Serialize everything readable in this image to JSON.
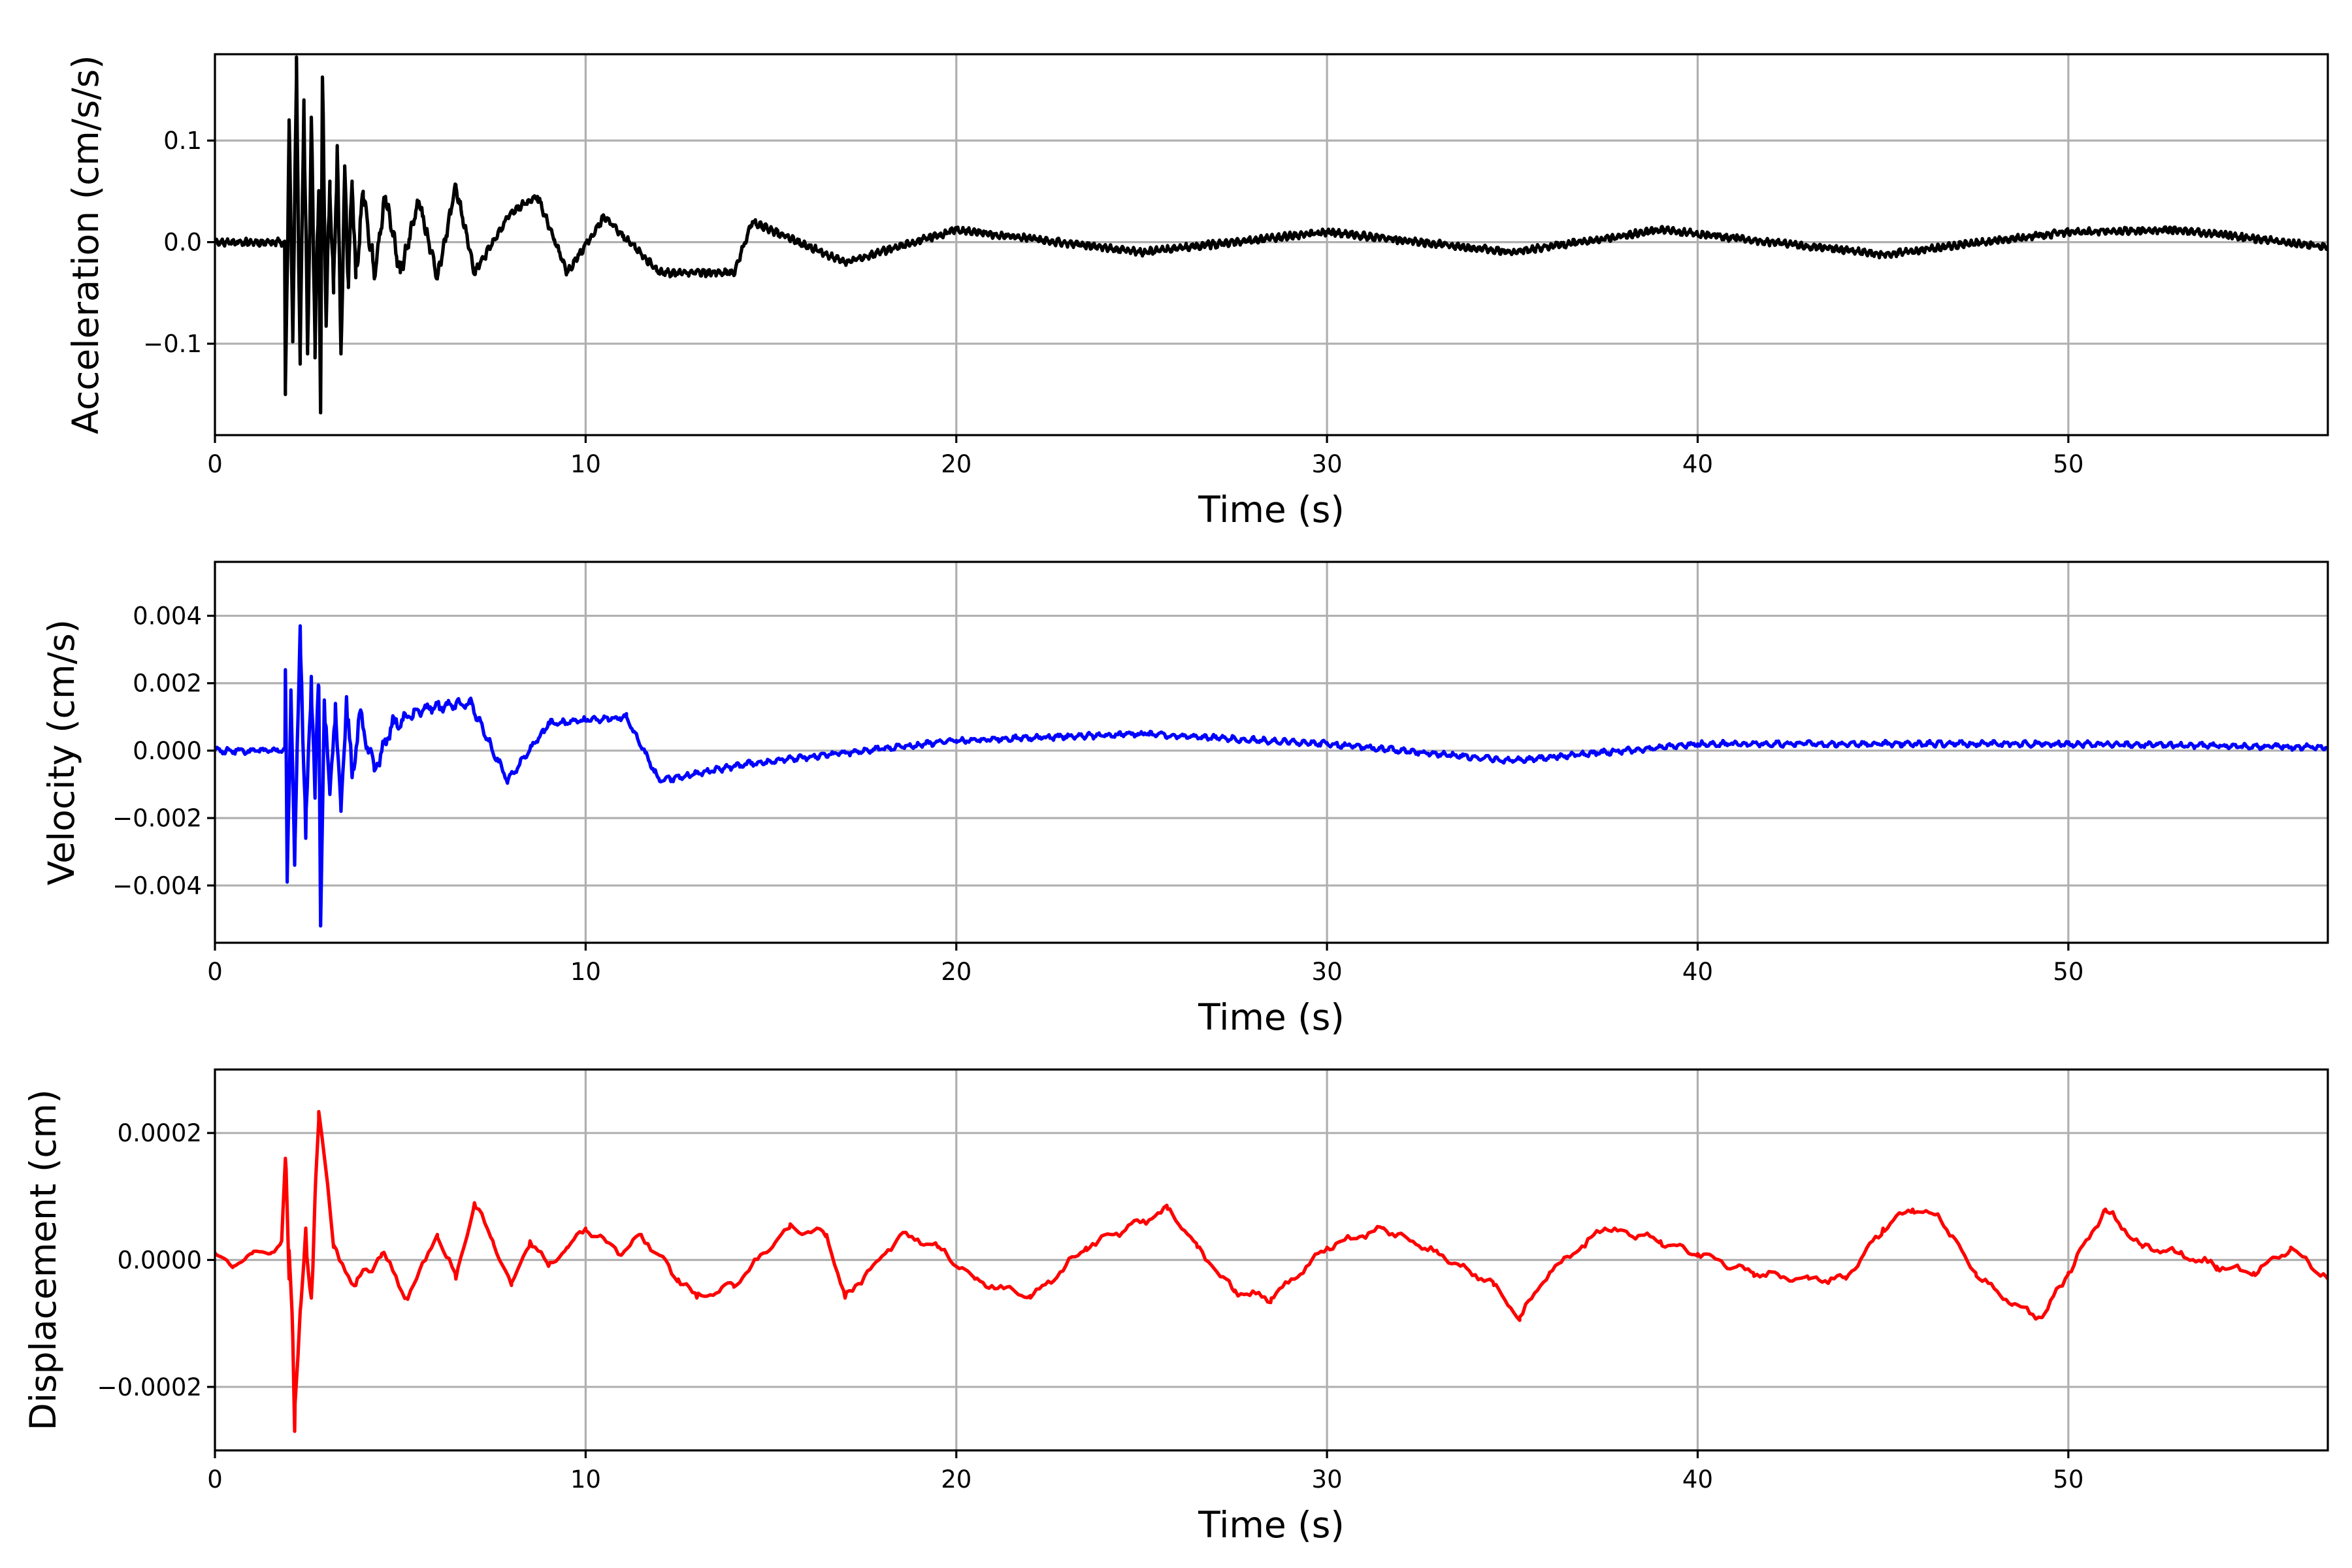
{
  "chart_data": [
    {
      "type": "line",
      "xlabel": "Time (s)",
      "ylabel": "Acceleration (cm/s/s)",
      "xlim": [
        0,
        57
      ],
      "ylim": [
        -0.19,
        0.185
      ],
      "xticks": [
        0,
        10,
        20,
        30,
        40,
        50
      ],
      "xtick_labels": [
        "0",
        "10",
        "20",
        "30",
        "40",
        "50"
      ],
      "yticks": [
        -0.1,
        0.0,
        0.1
      ],
      "ytick_labels": [
        "−0.1",
        "0.0",
        "0.1"
      ],
      "grid": true,
      "color": "#000000",
      "signal": {
        "dt": 0.02,
        "onset": 1.9,
        "pre_amplitude": 0.004,
        "coda_amplitude": 0.004,
        "decay": 0.5,
        "oscillation_hz": 6.5,
        "seed": 11
      },
      "series": [
        {
          "x": [
            1.9,
            2.0,
            2.1,
            2.2,
            2.3,
            2.4,
            2.5,
            2.6,
            2.7,
            2.8,
            2.85,
            2.9,
            3.0,
            3.1,
            3.2,
            3.3,
            3.4,
            3.5,
            3.6,
            3.7,
            3.8,
            4.0,
            4.3,
            4.6,
            5.0,
            5.5,
            6.0,
            6.5,
            7.0,
            8.0,
            8.7,
            9.5,
            10.5,
            12.0,
            14.0,
            14.5,
            17.0,
            20.0,
            25.0,
            30.0,
            35.0,
            39.0,
            45.0,
            50.0,
            53.0,
            57.0
          ],
          "y": [
            -0.15,
            0.114,
            -0.09,
            0.162,
            -0.12,
            0.14,
            -0.11,
            0.12,
            -0.1,
            0.05,
            -0.168,
            0.16,
            -0.08,
            0.06,
            -0.05,
            0.095,
            -0.11,
            0.07,
            -0.04,
            0.06,
            -0.035,
            0.05,
            -0.03,
            0.045,
            -0.03,
            0.04,
            -0.035,
            0.055,
            -0.03,
            0.03,
            0.045,
            -0.03,
            0.025,
            -0.03,
            -0.03,
            0.02,
            -0.02,
            0.012,
            -0.01,
            0.01,
            -0.01,
            0.012,
            -0.012,
            0.01,
            0.012,
            -0.005
          ]
        }
      ]
    },
    {
      "type": "line",
      "xlabel": "Time (s)",
      "ylabel": "Velocity (cm/s)",
      "xlim": [
        0,
        57
      ],
      "ylim": [
        -0.0057,
        0.0056
      ],
      "xticks": [
        0,
        10,
        20,
        30,
        40,
        50
      ],
      "xtick_labels": [
        "0",
        "10",
        "20",
        "30",
        "40",
        "50"
      ],
      "yticks": [
        -0.004,
        -0.002,
        0.0,
        0.002,
        0.004
      ],
      "ytick_labels": [
        "−0.004",
        "−0.002",
        "0.000",
        "0.002",
        "0.004"
      ],
      "grid": true,
      "color": "#0000ff",
      "signal": {
        "dt": 0.03,
        "onset": 1.9,
        "pre_amplitude": 0.00012,
        "coda_amplitude": 0.0001,
        "decay": 0.45,
        "oscillation_hz": 3.5,
        "seed": 23
      },
      "series": [
        {
          "x": [
            1.9,
            1.95,
            2.05,
            2.15,
            2.3,
            2.45,
            2.6,
            2.7,
            2.8,
            2.85,
            2.95,
            3.1,
            3.25,
            3.4,
            3.55,
            3.7,
            3.9,
            4.3,
            4.8,
            5.8,
            6.9,
            7.9,
            9.0,
            11.1,
            12.0,
            14.3,
            20.0,
            25.0,
            30.0,
            35.0,
            40.0,
            45.5,
            50.0,
            57.0
          ],
          "y": [
            0.0024,
            -0.0039,
            0.0018,
            -0.0034,
            0.0037,
            -0.0026,
            0.0022,
            -0.0012,
            0.0019,
            -0.0052,
            0.0015,
            -0.0013,
            0.0014,
            -0.0018,
            0.0016,
            -0.0008,
            0.0011,
            -0.0006,
            0.0008,
            0.0013,
            0.0014,
            -0.0009,
            0.0008,
            0.001,
            -0.0009,
            -0.0004,
            0.0003,
            0.0005,
            0.0002,
            -0.0003,
            0.0002,
            0.0002,
            0.0002,
            0.0001
          ]
        }
      ]
    },
    {
      "type": "line",
      "xlabel": "Time (s)",
      "ylabel": "Displacement (cm)",
      "xlim": [
        0,
        57
      ],
      "ylim": [
        -0.0003,
        0.0003
      ],
      "xticks": [
        0,
        10,
        20,
        30,
        40,
        50
      ],
      "xtick_labels": [
        "0",
        "10",
        "20",
        "30",
        "40",
        "50"
      ],
      "yticks": [
        -0.0002,
        0.0,
        0.0002
      ],
      "ytick_labels": [
        "−0.0002",
        "0.0000",
        "0.0002"
      ],
      "grid": true,
      "color": "#ff0000",
      "signal": {
        "dt": 0.08,
        "onset": 1.9,
        "pre_amplitude": 4e-06,
        "coda_amplitude": 8e-06,
        "decay": 1.2,
        "oscillation_hz": 1.2,
        "seed": 37
      },
      "series": [
        {
          "x": [
            0,
            0.5,
            1.0,
            1.5,
            1.8,
            1.9,
            2.0,
            2.1,
            2.15,
            2.3,
            2.45,
            2.6,
            2.7,
            2.8,
            3.2,
            3.8,
            4.5,
            5.2,
            6.0,
            6.5,
            7.0,
            7.5,
            8.0,
            8.5,
            9.0,
            9.5,
            10.0,
            11.0,
            11.5,
            12.5,
            13.0,
            14.0,
            15.5,
            16.5,
            17.0,
            18.5,
            19.5,
            20.5,
            22.0,
            23.5,
            25.0,
            25.7,
            26.5,
            27.5,
            28.5,
            30.0,
            31.5,
            33.0,
            34.5,
            35.2,
            36.0,
            37.5,
            39.0,
            40.0,
            41.5,
            43.0,
            44.0,
            45.0,
            45.8,
            46.5,
            47.5,
            48.5,
            49.3,
            50.0,
            51.0,
            52.0,
            53.0,
            54.0,
            55.0,
            56.0,
            57.0
          ],
          "y": [
            1e-05,
            -1e-05,
            1e-05,
            1e-05,
            3e-05,
            0.00016,
            -3e-05,
            -0.00012,
            -0.00027,
            -8e-05,
            5e-05,
            -6e-05,
            0.0001,
            0.00022,
            2e-05,
            -4e-05,
            1e-05,
            -6e-05,
            4e-05,
            -3e-05,
            9e-05,
            3e-05,
            -4e-05,
            3e-05,
            -1e-05,
            2e-05,
            5e-05,
            1e-05,
            4e-05,
            -3e-05,
            -6e-05,
            -4e-05,
            5e-05,
            4e-05,
            -6e-05,
            4e-05,
            2e-05,
            -3e-05,
            -6e-05,
            2e-05,
            6e-05,
            8e-05,
            2e-05,
            -5e-05,
            -6e-05,
            2e-05,
            5e-05,
            1e-05,
            -4e-05,
            -9e-05,
            -2e-05,
            5e-05,
            3e-05,
            1e-05,
            -2e-05,
            -3e-05,
            -3e-05,
            5e-05,
            8e-05,
            7e-05,
            -2e-05,
            -7e-05,
            -9e-05,
            -2e-05,
            8e-05,
            2e-05,
            1e-05,
            -1e-05,
            -2e-05,
            2e-05,
            -3e-05
          ]
        }
      ]
    }
  ]
}
